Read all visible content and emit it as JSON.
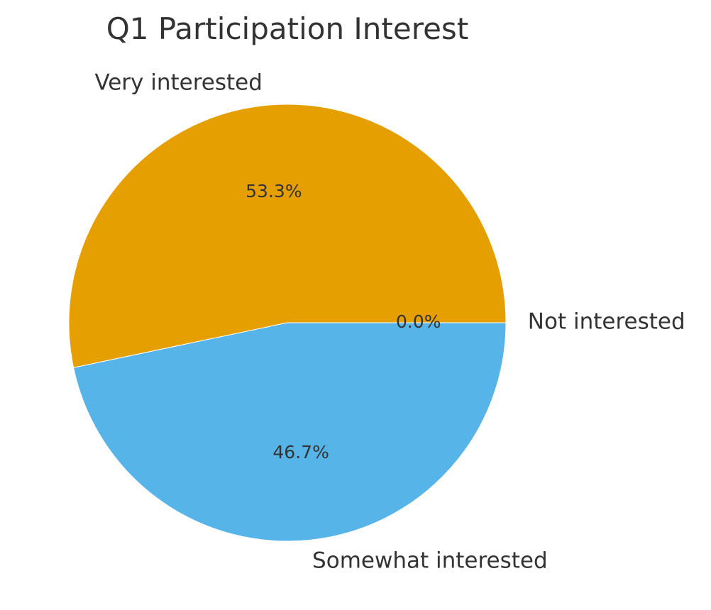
{
  "chart_data": {
    "type": "pie",
    "title": "Q1 Participation Interest",
    "categories": [
      "Not interested",
      "Very interested",
      "Somewhat interested"
    ],
    "values": [
      0.0,
      53.3,
      46.7
    ],
    "pct_labels": [
      "0.0%",
      "53.3%",
      "46.7%"
    ],
    "colors": [
      "#009E73",
      "#E69F00",
      "#56B4E9"
    ],
    "start_angle_deg": 0,
    "direction": "counterclockwise",
    "legend": "none"
  }
}
